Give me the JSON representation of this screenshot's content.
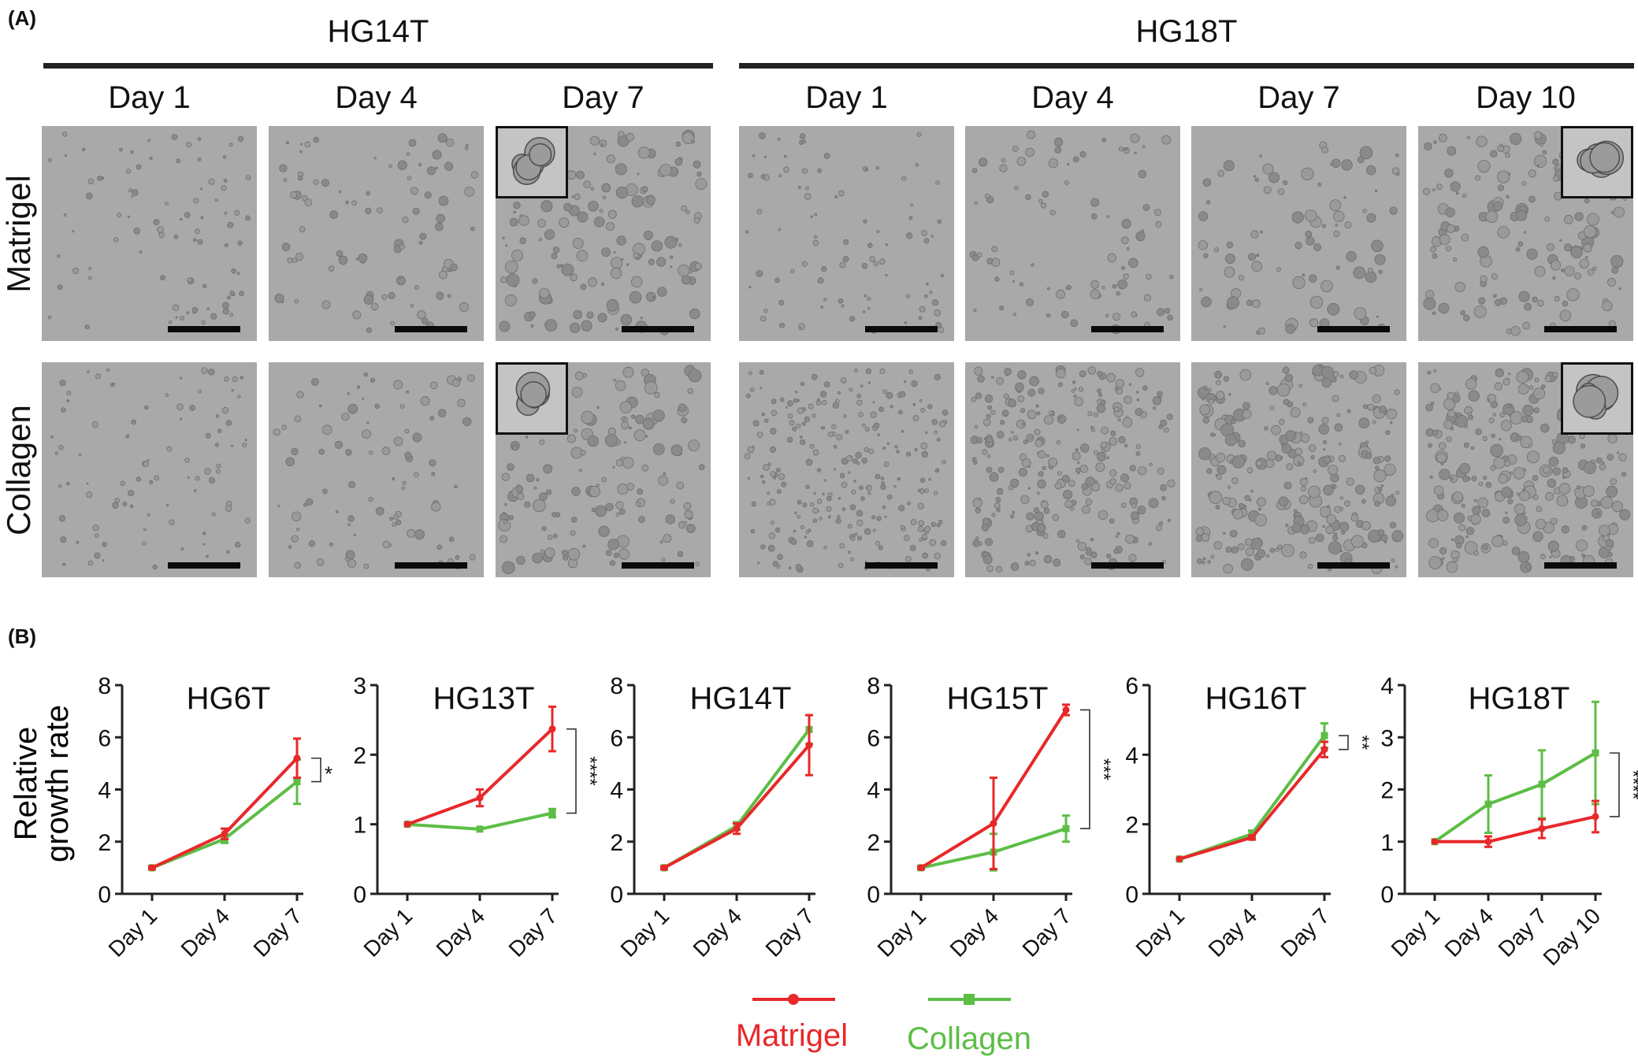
{
  "panel_a": {
    "label": "(A)",
    "groups": [
      {
        "title": "HG14T",
        "days": [
          "Day 1",
          "Day 4",
          "Day 7"
        ]
      },
      {
        "title": "HG18T",
        "days": [
          "Day 1",
          "Day 4",
          "Day 7",
          "Day 10"
        ]
      }
    ],
    "rows": [
      "Matrigel",
      "Collagen"
    ]
  },
  "panel_b": {
    "label": "(B)"
  },
  "colors": {
    "matrigel": "#e8282a",
    "collagen": "#5cbe45",
    "axis": "#222222"
  },
  "chart_data": [
    {
      "type": "line",
      "title": "HG6T",
      "ylabel": "Relative growth rate",
      "categories": [
        "Day 1",
        "Day 4",
        "Day 7"
      ],
      "ylim": [
        0,
        8
      ],
      "yticks": [
        0,
        2,
        4,
        6,
        8
      ],
      "series": [
        {
          "name": "Matrigel",
          "values": [
            1.0,
            2.3,
            5.2
          ],
          "errors": [
            0.05,
            0.2,
            0.75
          ]
        },
        {
          "name": "Collagen",
          "values": [
            1.0,
            2.1,
            4.3
          ],
          "errors": [
            0.05,
            0.15,
            0.85
          ]
        }
      ],
      "significance": "*"
    },
    {
      "type": "line",
      "title": "HG13T",
      "ylabel": "",
      "categories": [
        "Day 1",
        "Day 4",
        "Day 7"
      ],
      "ylim": [
        0,
        3
      ],
      "yticks": [
        0,
        1,
        2,
        3
      ],
      "series": [
        {
          "name": "Matrigel",
          "values": [
            1.0,
            1.38,
            2.37
          ],
          "errors": [
            0.02,
            0.12,
            0.32
          ]
        },
        {
          "name": "Collagen",
          "values": [
            1.0,
            0.93,
            1.16
          ],
          "errors": [
            0.02,
            0.03,
            0.06
          ]
        }
      ],
      "significance": "****"
    },
    {
      "type": "line",
      "title": "HG14T",
      "ylabel": "",
      "categories": [
        "Day 1",
        "Day 4",
        "Day 7"
      ],
      "ylim": [
        0,
        8
      ],
      "yticks": [
        0,
        2,
        4,
        6,
        8
      ],
      "series": [
        {
          "name": "Matrigel",
          "values": [
            1.0,
            2.5,
            5.7
          ],
          "errors": [
            0.05,
            0.2,
            1.15
          ]
        },
        {
          "name": "Collagen",
          "values": [
            1.0,
            2.6,
            6.3
          ],
          "errors": [
            0.05,
            0.15,
            0.55
          ]
        }
      ],
      "significance": ""
    },
    {
      "type": "line",
      "title": "HG15T",
      "ylabel": "",
      "categories": [
        "Day 1",
        "Day 4",
        "Day 7"
      ],
      "ylim": [
        0,
        8
      ],
      "yticks": [
        0,
        2,
        4,
        6,
        8
      ],
      "series": [
        {
          "name": "Matrigel",
          "values": [
            1.0,
            2.7,
            7.05
          ],
          "errors": [
            0.05,
            1.75,
            0.2
          ]
        },
        {
          "name": "Collagen",
          "values": [
            1.0,
            1.6,
            2.5
          ],
          "errors": [
            0.05,
            0.7,
            0.5
          ]
        }
      ],
      "significance": "***"
    },
    {
      "type": "line",
      "title": "HG16T",
      "ylabel": "",
      "categories": [
        "Day 1",
        "Day 4",
        "Day 7"
      ],
      "ylim": [
        0,
        6
      ],
      "yticks": [
        0,
        2,
        4,
        6
      ],
      "series": [
        {
          "name": "Matrigel",
          "values": [
            1.0,
            1.62,
            4.15
          ],
          "errors": [
            0.03,
            0.06,
            0.22
          ]
        },
        {
          "name": "Collagen",
          "values": [
            1.0,
            1.72,
            4.55
          ],
          "errors": [
            0.03,
            0.1,
            0.35
          ]
        }
      ],
      "significance": "**"
    },
    {
      "type": "line",
      "title": "HG18T",
      "ylabel": "",
      "categories": [
        "Day 1",
        "Day 4",
        "Day 7",
        "Day 10"
      ],
      "ylim": [
        0,
        4
      ],
      "yticks": [
        0,
        1,
        2,
        3,
        4
      ],
      "series": [
        {
          "name": "Matrigel",
          "values": [
            1.0,
            1.0,
            1.25,
            1.48
          ],
          "errors": [
            0.02,
            0.1,
            0.18,
            0.3
          ]
        },
        {
          "name": "Collagen",
          "values": [
            1.0,
            1.72,
            2.1,
            2.7
          ],
          "errors": [
            0.02,
            0.55,
            0.65,
            0.98
          ]
        }
      ],
      "significance": "****"
    }
  ],
  "legend": [
    {
      "name": "Matrigel",
      "marker": "circle"
    },
    {
      "name": "Collagen",
      "marker": "square"
    }
  ]
}
